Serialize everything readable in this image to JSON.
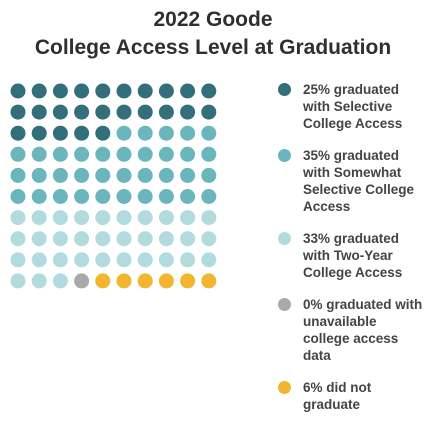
{
  "chart_data": {
    "type": "waffle",
    "title": [
      "2022 Goode",
      "College Access Level at Graduation"
    ],
    "total_dots": 100,
    "columns": 10,
    "series": [
      {
        "name": "Selective College Access",
        "value": 25,
        "label": "25% graduated with Selective College Access",
        "color": "#336e7b"
      },
      {
        "name": "Somewhat Selective College Access",
        "value": 35,
        "label": "35% graduated with Somewhat Selective College Access",
        "color": "#6bb5bd"
      },
      {
        "name": "Two-Year College Access",
        "value": 33,
        "label": "33% graduated with Two-Year College Access",
        "color": "#b2dbde"
      },
      {
        "name": "Unavailable college access data",
        "value": 0,
        "label": "0% graduated with unavailable college access data",
        "color": "#a9a9a9"
      },
      {
        "name": "Did not graduate",
        "value": 6,
        "label": "6% did not graduate",
        "color": "#f2b52f"
      }
    ],
    "dot_fill_order": [
      "#336e7b",
      "#6bb5bd",
      "#b2dbde",
      "#a9a9a9",
      "#f2b52f"
    ],
    "dot_counts": [
      25,
      35,
      33,
      1,
      6
    ]
  }
}
